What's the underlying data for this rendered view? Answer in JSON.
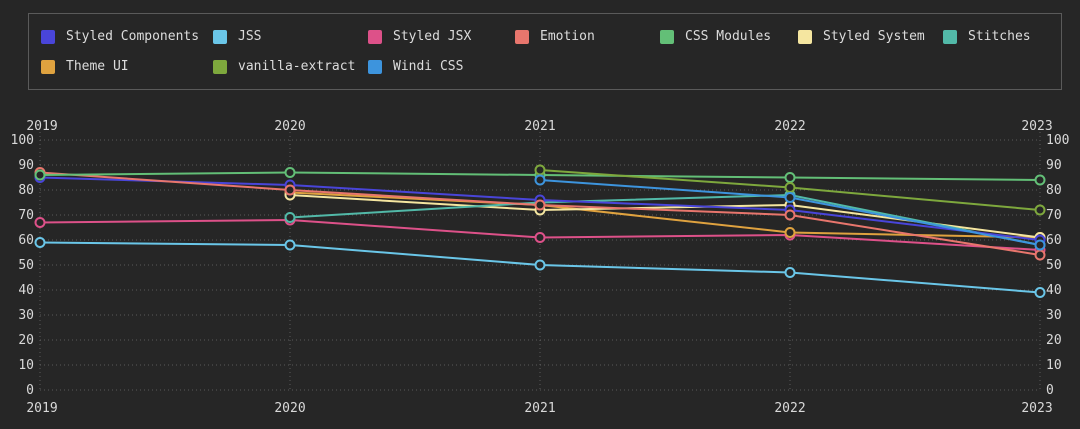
{
  "app": {
    "background_color": "#262626",
    "legend_border_color": "#5a5a5a"
  },
  "chart_data": {
    "type": "line",
    "title": "",
    "xlabel": "",
    "ylabel": "",
    "x": [
      2019,
      2020,
      2021,
      2022,
      2023
    ],
    "x_tick_labels": [
      "2019",
      "2020",
      "2021",
      "2022",
      "2023"
    ],
    "y_ticks": [
      0,
      10,
      20,
      30,
      40,
      50,
      60,
      70,
      80,
      90,
      100
    ],
    "ylim": [
      0,
      100
    ],
    "grid": true,
    "grid_style": "dotted",
    "legend_position": "top",
    "x_axis_sides": [
      "top",
      "bottom"
    ],
    "y_axis_sides": [
      "left",
      "right"
    ],
    "marker": "open-circle",
    "series": [
      {
        "name": "Styled Components",
        "color": "#4945d9",
        "values": [
          85,
          82,
          76,
          72,
          60
        ]
      },
      {
        "name": "JSS",
        "color": "#6ac6e8",
        "values": [
          59,
          58,
          50,
          47,
          39
        ]
      },
      {
        "name": "Styled JSX",
        "color": "#dd5189",
        "values": [
          67,
          68,
          61,
          62,
          56
        ]
      },
      {
        "name": "Emotion",
        "color": "#e8766d",
        "values": [
          87,
          80,
          74,
          70,
          54
        ]
      },
      {
        "name": "CSS Modules",
        "color": "#63bf77",
        "values": [
          86,
          87,
          86,
          85,
          84
        ]
      },
      {
        "name": "Styled System",
        "color": "#f5e6a0",
        "values": [
          null,
          78,
          72,
          74,
          61
        ]
      },
      {
        "name": "Stitches",
        "color": "#52b9a8",
        "values": [
          null,
          69,
          75,
          78,
          58
        ]
      },
      {
        "name": "Theme UI",
        "color": "#dfa23f",
        "values": [
          null,
          79,
          74,
          63,
          61
        ]
      },
      {
        "name": "vanilla-extract",
        "color": "#7ea83d",
        "values": [
          null,
          null,
          88,
          81,
          72
        ]
      },
      {
        "name": "Windi CSS",
        "color": "#3d94dd",
        "values": [
          null,
          null,
          84,
          77,
          58
        ]
      }
    ]
  }
}
